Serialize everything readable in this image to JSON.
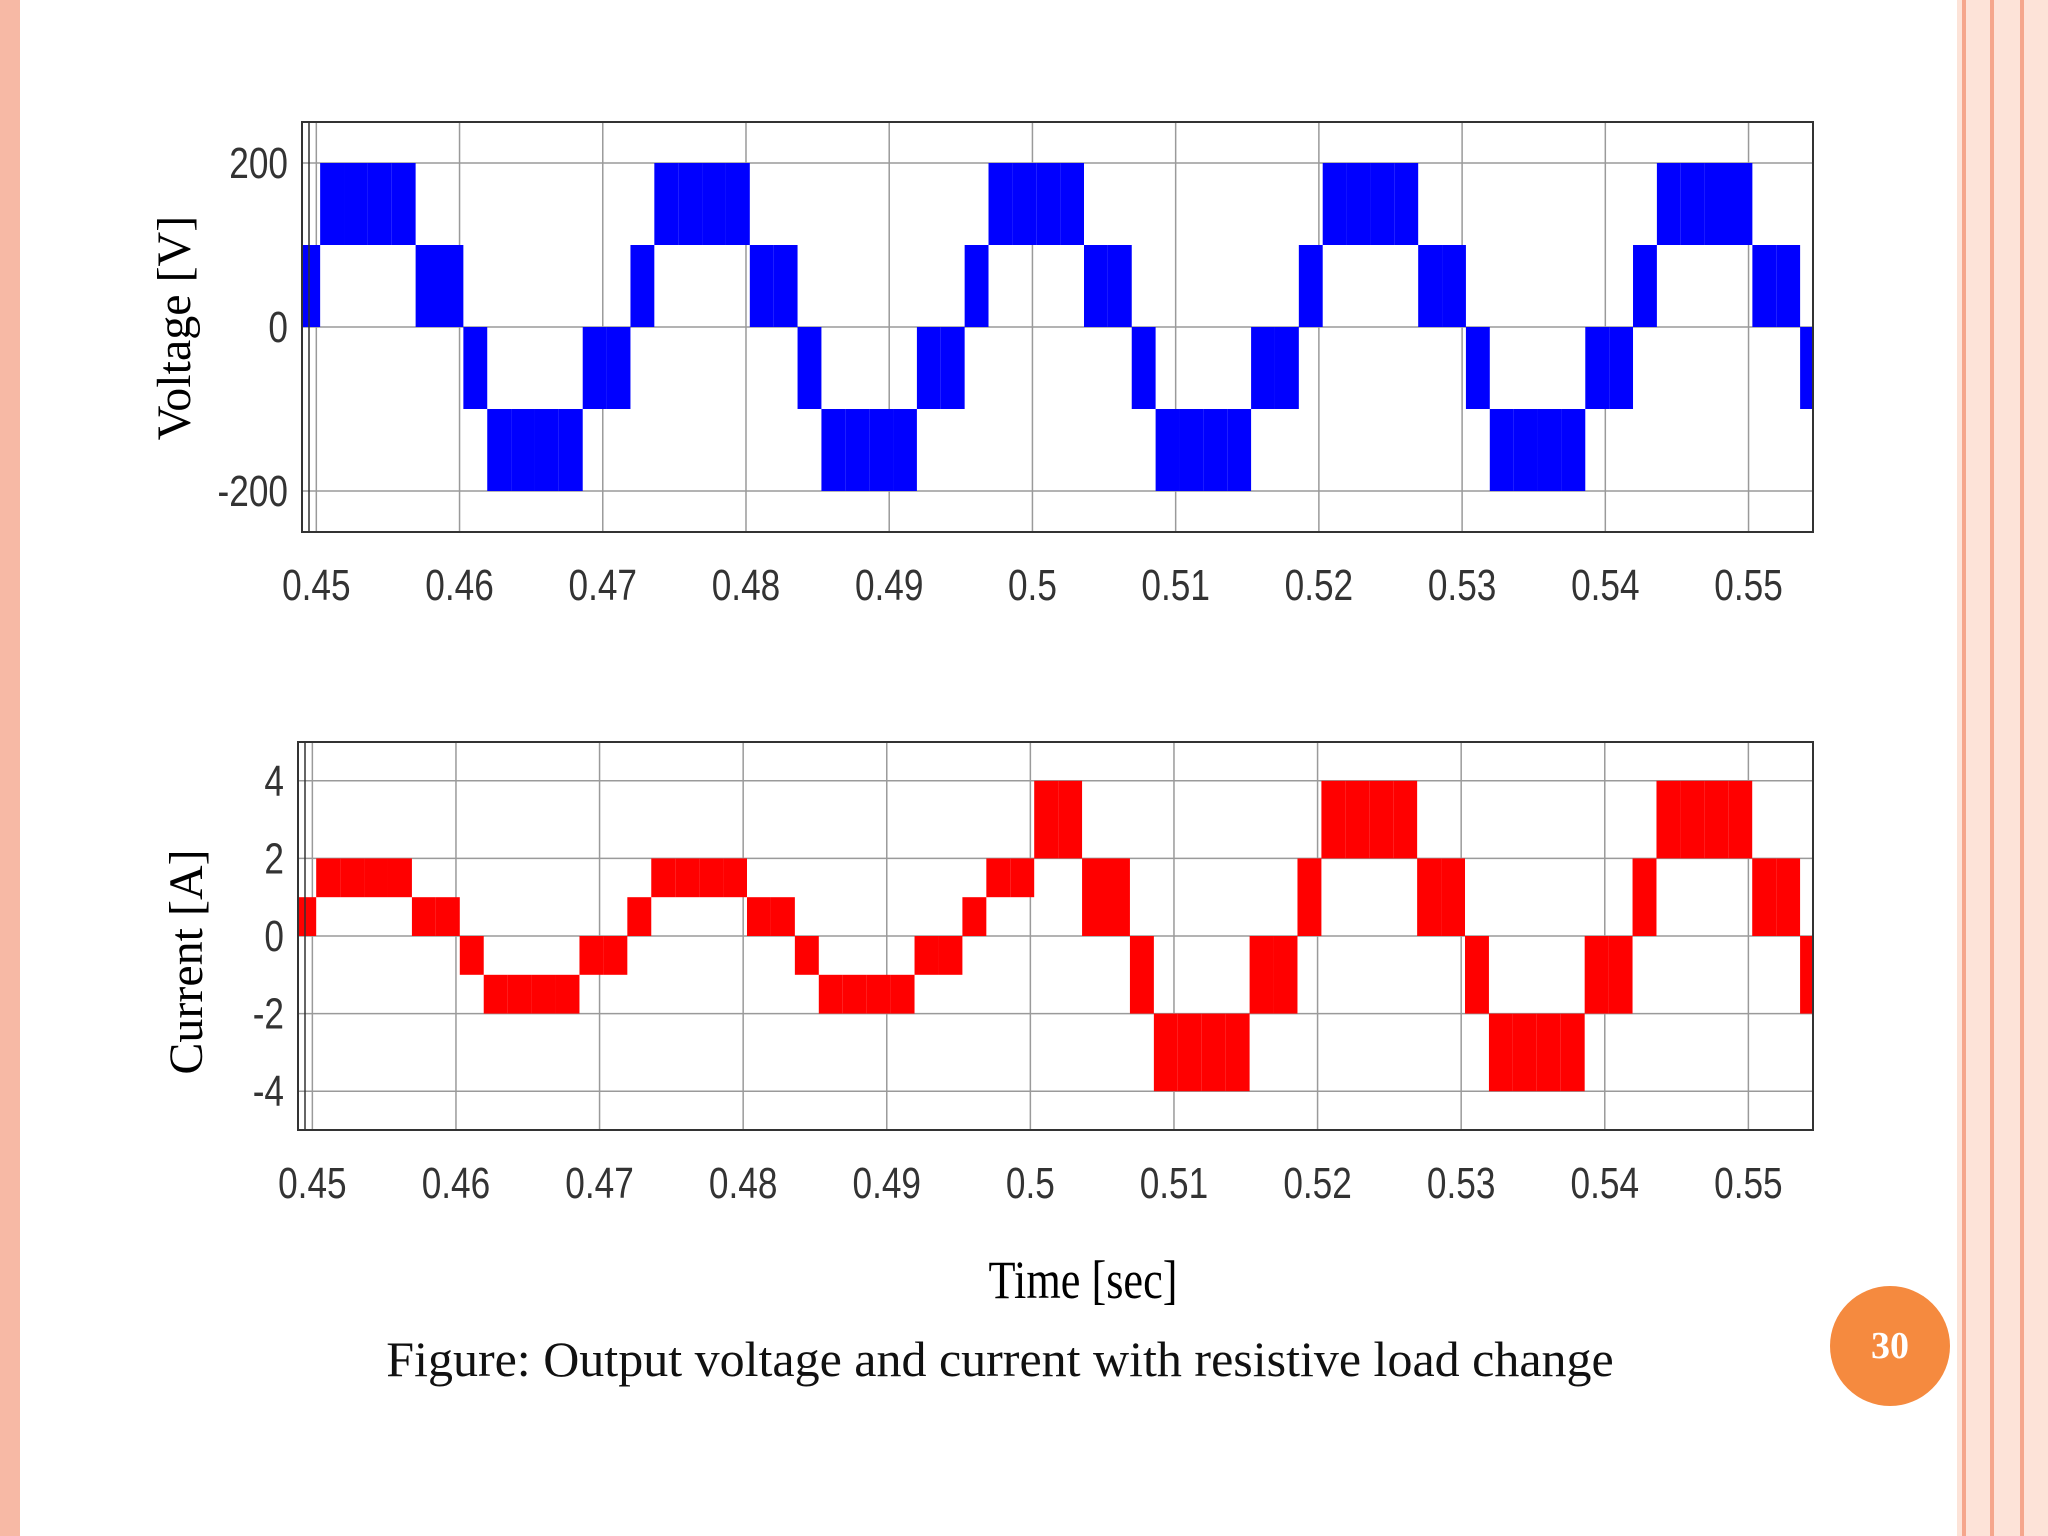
{
  "theme": {
    "slide_border": "#f7b9a5",
    "right_band": "#fde3d8",
    "right_line": "#f5a68c",
    "grid": "#9a9a9a",
    "frame": "#333333"
  },
  "slide": {
    "caption": "Figure: Output voltage and current with resistive load change",
    "page_number": "30",
    "page_badge_color": "#f58a3f"
  },
  "chart_data": [
    {
      "type": "line",
      "ylabel": "Voltage [V]",
      "xlabel": "",
      "xlim": [
        0.449,
        0.5545
      ],
      "ylim": [
        -250,
        250
      ],
      "xticks": [
        0.45,
        0.46,
        0.47,
        0.48,
        0.49,
        0.5,
        0.51,
        0.52,
        0.53,
        0.54,
        0.55
      ],
      "xtick_labels": [
        "0.45",
        "0.46",
        "0.47",
        "0.48",
        "0.49",
        "0.5",
        "0.51",
        "0.52",
        "0.53",
        "0.54",
        "0.55"
      ],
      "yticks": [
        -200,
        0,
        200
      ],
      "ytick_labels": [
        "-200",
        "0",
        "200"
      ],
      "grid": true,
      "series": [
        {
          "color": "#0000ff",
          "period": 0.02,
          "phase_start": 0.4486,
          "step_width": 0.00166667,
          "levels": [
            1,
            2,
            2,
            2,
            2,
            1,
            0,
            -1,
            -2,
            -2,
            -2,
            -2,
            -1,
            0
          ],
          "level_values": {
            "-2": [
              -200,
              -100
            ],
            "-1": [
              -100,
              0
            ],
            "0": [
              0,
              100
            ],
            "1": [
              0,
              100
            ],
            "2": [
              100,
              200
            ]
          },
          "level_sign_lower_half": true
        }
      ]
    },
    {
      "type": "line",
      "ylabel": "Current [A]",
      "xlabel": "Time [sec]",
      "xlim": [
        0.449,
        0.5545
      ],
      "ylim": [
        -5,
        5
      ],
      "xticks": [
        0.45,
        0.46,
        0.47,
        0.48,
        0.49,
        0.5,
        0.51,
        0.52,
        0.53,
        0.54,
        0.55
      ],
      "xtick_labels": [
        "0.45",
        "0.46",
        "0.47",
        "0.48",
        "0.49",
        "0.5",
        "0.51",
        "0.52",
        "0.53",
        "0.54",
        "0.55"
      ],
      "yticks": [
        -4,
        -2,
        0,
        2,
        4
      ],
      "ytick_labels": [
        "-4",
        "-2",
        "0",
        "2",
        "4"
      ],
      "grid": true,
      "load_change_time": 0.5,
      "series": [
        {
          "color": "#ff0000",
          "period": 0.02,
          "phase_start": 0.4486,
          "step_width": 0.00166667,
          "levels": [
            1,
            2,
            2,
            2,
            2,
            1,
            0,
            -1,
            -2,
            -2,
            -2,
            -2,
            -1,
            0
          ],
          "amplitude_before_change": 2,
          "amplitude_after_change": 4
        }
      ]
    }
  ]
}
